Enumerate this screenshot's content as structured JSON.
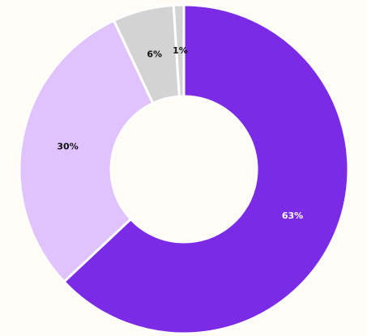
{
  "chart_data": {
    "type": "donut",
    "values": [
      63,
      30,
      6,
      1
    ],
    "value_labels": [
      "63%",
      "30%",
      "6%",
      "1%"
    ],
    "colors": [
      "#7b2ae6",
      "#e0c3fc",
      "#d3d3d3",
      "#d3d3d3"
    ],
    "label_colors": [
      "#ffffff",
      "#111111",
      "#111111",
      "#111111"
    ]
  }
}
